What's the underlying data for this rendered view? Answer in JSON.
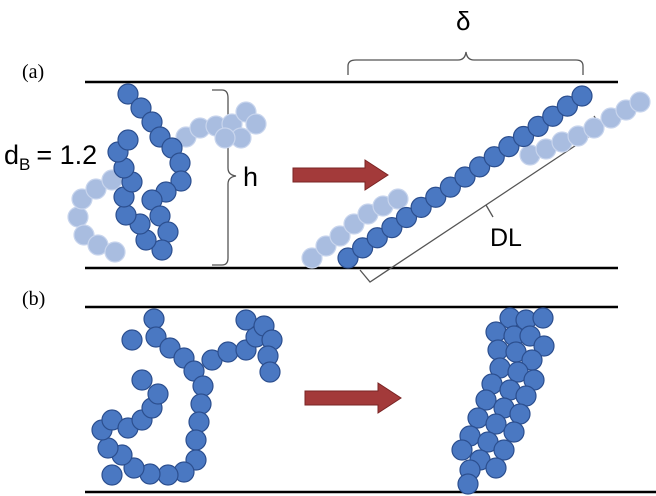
{
  "panels": {
    "a": {
      "label": "(a)"
    },
    "b": {
      "label": "(b)"
    }
  },
  "annotations": {
    "delta": "δ",
    "db_symbol": "d",
    "db_subscript": "B",
    "db_value": "= 1.2",
    "h": "h",
    "dl": "DL"
  }
}
